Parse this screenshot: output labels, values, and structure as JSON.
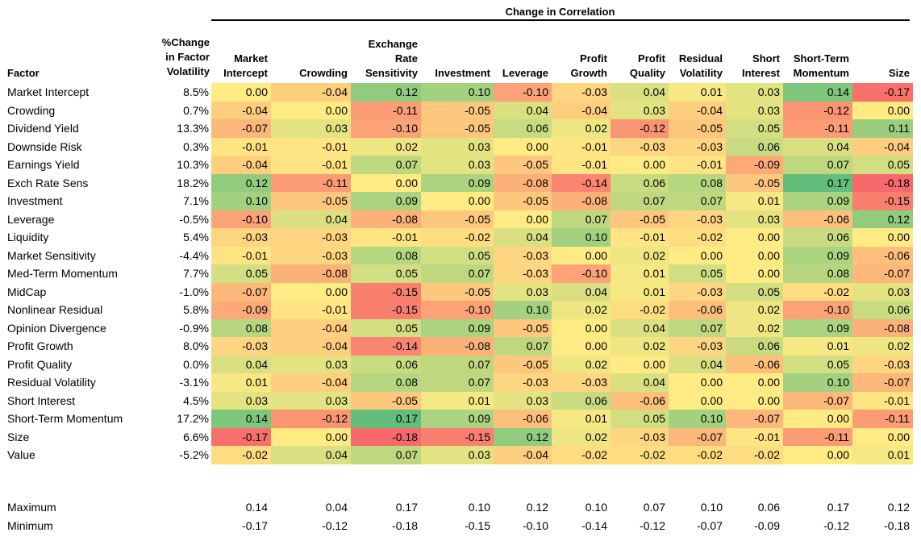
{
  "chart_data": {
    "type": "heatmap",
    "title": "Change in Correlation",
    "row_header": "Factor",
    "volatility_header": "%Change\nin Factor\nVolatility",
    "columns": [
      "Market\nIntercept",
      "Crowding",
      "Exchange\nRate\nSensitivity",
      "Investment",
      "Leverage",
      "Profit\nGrowth",
      "Profit\nQuality",
      "Residual\nVolatility",
      "Short\nInterest",
      "Short-Term\nMomentum",
      "Size"
    ],
    "rows": [
      {
        "factor": "Market Intercept",
        "vol": "8.5%",
        "values": [
          0.0,
          -0.04,
          0.12,
          0.1,
          -0.1,
          -0.03,
          0.04,
          0.01,
          0.03,
          0.14,
          -0.17
        ]
      },
      {
        "factor": "Crowding",
        "vol": "0.7%",
        "values": [
          -0.04,
          0.0,
          -0.11,
          -0.05,
          0.04,
          -0.04,
          0.03,
          -0.04,
          0.03,
          -0.12,
          0.0
        ]
      },
      {
        "factor": "Dividend Yield",
        "vol": "13.3%",
        "values": [
          -0.07,
          0.03,
          -0.1,
          -0.05,
          0.06,
          0.02,
          -0.12,
          -0.05,
          0.05,
          -0.11,
          0.11
        ]
      },
      {
        "factor": "Downside Risk",
        "vol": "0.3%",
        "values": [
          -0.01,
          -0.01,
          0.02,
          0.03,
          0.0,
          -0.01,
          -0.03,
          -0.03,
          0.06,
          0.04,
          -0.04
        ]
      },
      {
        "factor": "Earnings Yield",
        "vol": "10.3%",
        "values": [
          -0.04,
          -0.01,
          0.07,
          0.03,
          -0.05,
          -0.01,
          0.0,
          -0.01,
          -0.09,
          0.07,
          0.05
        ]
      },
      {
        "factor": "Exch Rate Sens",
        "vol": "18.2%",
        "values": [
          0.12,
          -0.11,
          0.0,
          0.09,
          -0.08,
          -0.14,
          0.06,
          0.08,
          -0.05,
          0.17,
          -0.18
        ]
      },
      {
        "factor": "Investment",
        "vol": "7.1%",
        "values": [
          0.1,
          -0.05,
          0.09,
          0.0,
          -0.05,
          -0.08,
          0.07,
          0.07,
          0.01,
          0.09,
          -0.15
        ]
      },
      {
        "factor": "Leverage",
        "vol": "-0.5%",
        "values": [
          -0.1,
          0.04,
          -0.08,
          -0.05,
          0.0,
          0.07,
          -0.05,
          -0.03,
          0.03,
          -0.06,
          0.12
        ]
      },
      {
        "factor": "Liquidity",
        "vol": "5.4%",
        "values": [
          -0.03,
          -0.03,
          -0.01,
          -0.02,
          0.04,
          0.1,
          -0.01,
          -0.02,
          0.0,
          0.06,
          0.0
        ]
      },
      {
        "factor": "Market Sensitivity",
        "vol": "-4.4%",
        "values": [
          -0.01,
          -0.03,
          0.08,
          0.05,
          -0.03,
          0.0,
          0.02,
          0.0,
          0.0,
          0.09,
          -0.06
        ]
      },
      {
        "factor": "Med-Term Momentum",
        "vol": "7.7%",
        "values": [
          0.05,
          -0.08,
          0.05,
          0.07,
          -0.03,
          -0.1,
          0.01,
          0.05,
          0.0,
          0.08,
          -0.07
        ]
      },
      {
        "factor": "MidCap",
        "vol": "-1.0%",
        "values": [
          -0.07,
          0.0,
          -0.15,
          -0.05,
          0.03,
          0.04,
          0.01,
          -0.03,
          0.05,
          -0.02,
          0.03
        ]
      },
      {
        "factor": "Nonlinear Residual",
        "vol": "5.8%",
        "values": [
          -0.09,
          -0.01,
          -0.15,
          -0.1,
          0.1,
          0.02,
          -0.02,
          -0.06,
          0.02,
          -0.1,
          0.06
        ]
      },
      {
        "factor": "Opinion Divergence",
        "vol": "-0.9%",
        "values": [
          0.08,
          -0.04,
          0.05,
          0.09,
          -0.05,
          0.0,
          0.04,
          0.07,
          0.02,
          0.09,
          -0.08
        ]
      },
      {
        "factor": "Profit Growth",
        "vol": "8.0%",
        "values": [
          -0.03,
          -0.04,
          -0.14,
          -0.08,
          0.07,
          0.0,
          0.02,
          -0.03,
          0.06,
          0.01,
          0.02
        ]
      },
      {
        "factor": "Profit Quality",
        "vol": "0.0%",
        "values": [
          0.04,
          0.03,
          0.06,
          0.07,
          -0.05,
          0.02,
          0.0,
          0.04,
          -0.06,
          0.05,
          -0.03
        ]
      },
      {
        "factor": "Residual Volatility",
        "vol": "-3.1%",
        "values": [
          0.01,
          -0.04,
          0.08,
          0.07,
          -0.03,
          -0.03,
          0.04,
          0.0,
          0.0,
          0.1,
          -0.07
        ]
      },
      {
        "factor": "Short Interest",
        "vol": "4.5%",
        "values": [
          0.03,
          0.03,
          -0.05,
          0.01,
          0.03,
          0.06,
          -0.06,
          0.0,
          0.0,
          -0.07,
          -0.01
        ]
      },
      {
        "factor": "Short-Term Momentum",
        "vol": "17.2%",
        "values": [
          0.14,
          -0.12,
          0.17,
          0.09,
          -0.06,
          0.01,
          0.05,
          0.1,
          -0.07,
          0.0,
          -0.11
        ]
      },
      {
        "factor": "Size",
        "vol": "6.6%",
        "values": [
          -0.17,
          0.0,
          -0.18,
          -0.15,
          0.12,
          0.02,
          -0.03,
          -0.07,
          -0.01,
          -0.11,
          0.0
        ]
      },
      {
        "factor": "Value",
        "vol": "-5.2%",
        "values": [
          -0.02,
          0.04,
          0.07,
          0.03,
          -0.04,
          -0.02,
          -0.02,
          -0.02,
          -0.02,
          0.0,
          0.01
        ]
      }
    ],
    "summary": [
      {
        "label": "Maximum",
        "values": [
          0.14,
          0.04,
          0.17,
          0.1,
          0.12,
          0.1,
          0.07,
          0.1,
          0.06,
          0.17,
          0.12
        ]
      },
      {
        "label": "Minimum",
        "values": [
          -0.17,
          -0.12,
          -0.18,
          -0.15,
          -0.1,
          -0.14,
          -0.12,
          -0.07,
          -0.09,
          -0.12,
          -0.18
        ]
      }
    ],
    "color_scale": {
      "min": -0.18,
      "mid": 0.0,
      "max": 0.17,
      "low_color": "#f8696b",
      "mid_color": "#ffeb84",
      "high_color": "#63be7b"
    }
  }
}
